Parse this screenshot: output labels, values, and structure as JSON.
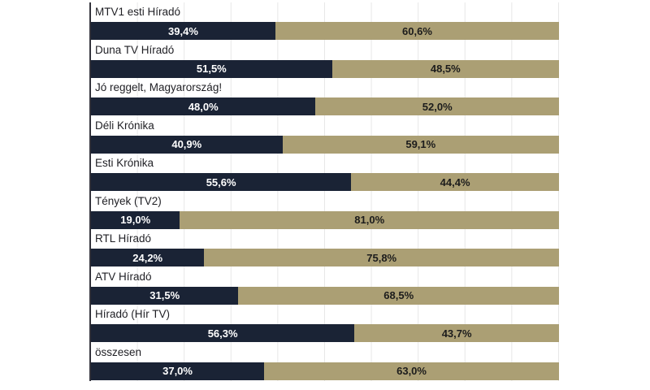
{
  "chart_data": {
    "type": "bar",
    "orientation": "horizontal",
    "stacked": true,
    "title": "",
    "xlabel": "",
    "ylabel": "",
    "xlim": [
      0,
      100
    ],
    "grid": "vertical gridlines every 10%",
    "legend": "none",
    "categories": [
      "MTV1 esti Híradó",
      "Duna TV Híradó",
      "Jó reggelt, Magyarország!",
      "Déli Krónika",
      "Esti Krónika",
      "Tények (TV2)",
      "RTL Híradó",
      "ATV Híradó",
      "Híradó (Hír TV)",
      "összesen"
    ],
    "series": [
      {
        "name": "series-1",
        "color": "#1a2335",
        "values": [
          39.4,
          51.5,
          48.0,
          40.9,
          55.6,
          19.0,
          24.2,
          31.5,
          56.3,
          37.0
        ],
        "labels": [
          "39,4%",
          "51,5%",
          "48,0%",
          "40,9%",
          "55,6%",
          "19,0%",
          "24,2%",
          "31,5%",
          "56,3%",
          "37,0%"
        ]
      },
      {
        "name": "series-2",
        "color": "#ab9f74",
        "values": [
          60.6,
          48.5,
          52.0,
          59.1,
          44.4,
          81.0,
          75.8,
          68.5,
          43.7,
          63.0
        ],
        "labels": [
          "60,6%",
          "48,5%",
          "52,0%",
          "59,1%",
          "44,4%",
          "81,0%",
          "75,8%",
          "68,5%",
          "43,7%",
          "63,0%"
        ]
      }
    ]
  },
  "colors": {
    "background": "#ffffff",
    "grid": "#e7e7e7",
    "axis": "#33333c",
    "label_text": "#1f1f24",
    "series1": "#1a2335",
    "series2": "#ab9f74",
    "value_on_dark": "#ffffff",
    "value_on_light": "#1c1c1c"
  }
}
